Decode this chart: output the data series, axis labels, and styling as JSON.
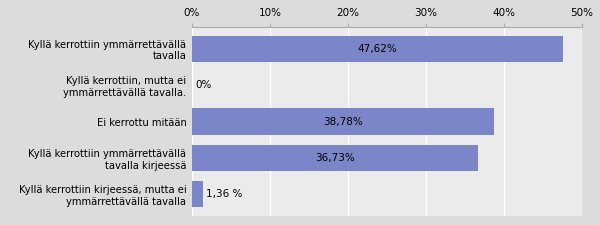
{
  "categories": [
    "Kyllä kerrottiin kirjeessä, mutta ei\nymmärrettävällä tavalla",
    "Kyllä kerrottiin ymmärrettävällä\ntavalla kirjeessä",
    "Ei kerrottu mitään",
    "Kyllä kerrottiin, mutta ei\nymmärrettävällä tavalla.",
    "Kyllä kerrottiin ymmärrettävällä\ntavalla"
  ],
  "values": [
    1.36,
    36.73,
    38.78,
    0.0,
    47.62
  ],
  "labels": [
    "1,36 %",
    "36,73%",
    "38,78%",
    "0%",
    "47,62%"
  ],
  "bar_color": "#7b86c8",
  "background_color": "#dcdcdc",
  "plot_background_color": "#ebebeb",
  "xlim": [
    0,
    50
  ],
  "xticks": [
    0,
    10,
    20,
    30,
    40,
    50
  ],
  "xtick_labels": [
    "0%",
    "10%",
    "20%",
    "30%",
    "40%",
    "50%"
  ]
}
